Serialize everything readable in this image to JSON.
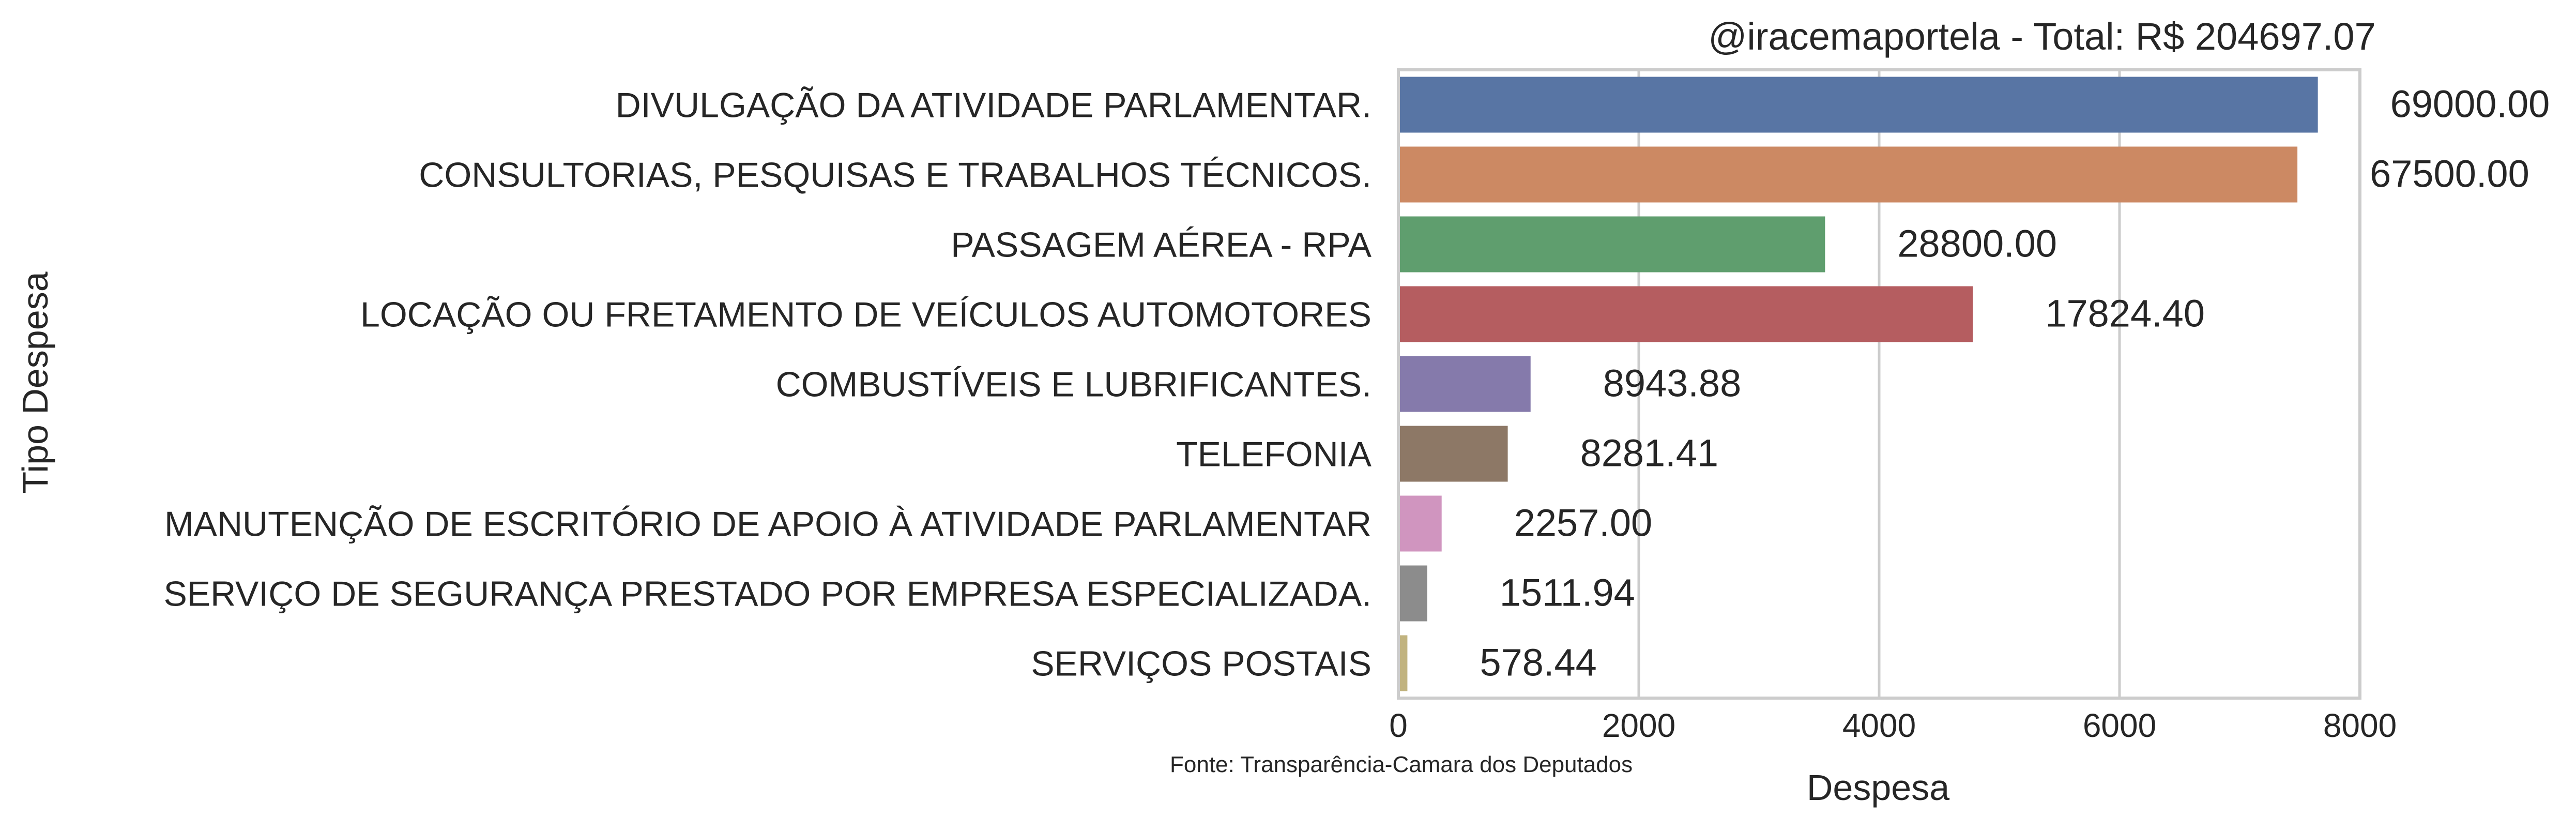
{
  "chart_data": {
    "type": "bar",
    "orientation": "horizontal",
    "title": "@iracemaportela - Total: R$ 204697.07",
    "xlabel": "Despesa",
    "ylabel": "Tipo Despesa",
    "xlim": [
      0,
      8000
    ],
    "xticks": [
      0,
      2000,
      4000,
      6000,
      8000
    ],
    "grid": "vertical",
    "legend": "none",
    "source_note": "Fonte: Transparência-Camara dos Deputados",
    "categories": [
      "DIVULGAÇÃO DA ATIVIDADE PARLAMENTAR.",
      "CONSULTORIAS, PESQUISAS E TRABALHOS TÉCNICOS.",
      "PASSAGEM AÉREA - RPA",
      "LOCAÇÃO OU FRETAMENTO DE VEÍCULOS AUTOMOTORES",
      "COMBUSTÍVEIS E LUBRIFICANTES.",
      "TELEFONIA",
      "MANUTENÇÃO DE ESCRITÓRIO DE APOIO À ATIVIDADE PARLAMENTAR",
      "SERVIÇO DE SEGURANÇA PRESTADO POR EMPRESA ESPECIALIZADA.",
      "SERVIÇOS POSTAIS"
    ],
    "values": [
      7650,
      7480,
      3550,
      4780,
      1100,
      910,
      360,
      240,
      75
    ],
    "data_labels": [
      "69000.00",
      "67500.00",
      "28800.00",
      "17824.40",
      "8943.88",
      "8281.41",
      "2257.00",
      "1511.94",
      "578.44"
    ],
    "colors": [
      "#5875a4",
      "#cc8963",
      "#5f9e6e",
      "#b55d60",
      "#857aab",
      "#8d7866",
      "#d095bf",
      "#8c8c8c",
      "#c1b37f"
    ]
  }
}
